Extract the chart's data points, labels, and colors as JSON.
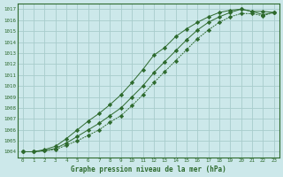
{
  "title": "Graphe pression niveau de la mer (hPa)",
  "bg_color": "#cce8ea",
  "line_color": "#2d6a2d",
  "grid_color": "#a8cccc",
  "x_values": [
    0,
    1,
    2,
    3,
    4,
    5,
    6,
    7,
    8,
    9,
    10,
    11,
    12,
    13,
    14,
    15,
    16,
    17,
    18,
    19,
    20,
    21,
    22,
    23
  ],
  "line1": [
    1004.0,
    1004.0,
    1004.2,
    1004.5,
    1005.2,
    1006.0,
    1006.8,
    1007.5,
    1008.3,
    1009.2,
    1010.3,
    1011.5,
    1012.8,
    1013.5,
    1014.5,
    1015.2,
    1015.8,
    1016.3,
    1016.7,
    1016.9,
    1017.0,
    1016.8,
    1016.8,
    1016.7
  ],
  "line2": [
    1004.0,
    1004.0,
    1004.1,
    1004.3,
    1004.8,
    1005.4,
    1006.0,
    1006.6,
    1007.3,
    1008.0,
    1009.0,
    1010.0,
    1011.2,
    1012.2,
    1013.2,
    1014.2,
    1015.1,
    1015.8,
    1016.3,
    1016.7,
    1017.0,
    1016.8,
    1016.5,
    1016.7
  ],
  "line3": [
    1004.0,
    1004.0,
    1004.1,
    1004.2,
    1004.6,
    1005.0,
    1005.5,
    1006.0,
    1006.7,
    1007.3,
    1008.2,
    1009.2,
    1010.3,
    1011.3,
    1012.3,
    1013.3,
    1014.3,
    1015.1,
    1015.8,
    1016.3,
    1016.6,
    1016.6,
    1016.4,
    1016.7
  ],
  "ylim": [
    1003.5,
    1017.5
  ],
  "xlim": [
    -0.5,
    23.5
  ],
  "yticks": [
    1004,
    1005,
    1006,
    1007,
    1008,
    1009,
    1010,
    1011,
    1012,
    1013,
    1014,
    1015,
    1016,
    1017
  ],
  "xticks": [
    0,
    1,
    2,
    3,
    4,
    5,
    6,
    7,
    8,
    9,
    10,
    11,
    12,
    13,
    14,
    15,
    16,
    17,
    18,
    19,
    20,
    21,
    22,
    23
  ]
}
